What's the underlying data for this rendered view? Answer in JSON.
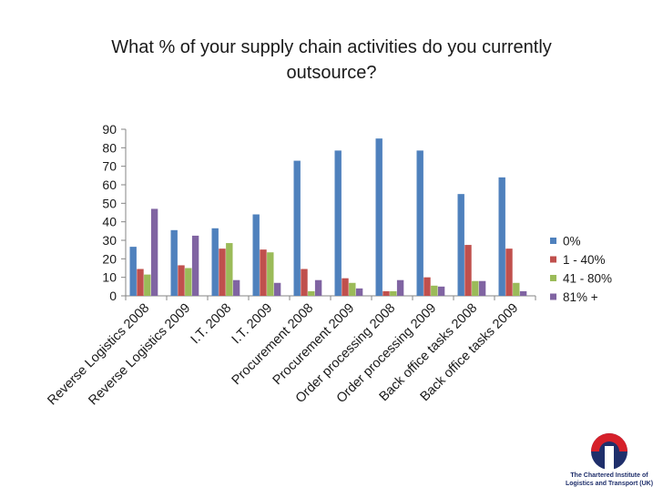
{
  "chart_data": {
    "type": "bar",
    "title_line1": "What % of your supply chain activities do you currently",
    "title_line2": "outsource?",
    "categories": [
      "Reverse Logistics 2008",
      "Reverse Logistics 2009",
      "I.T. 2008",
      "I.T. 2009",
      "Procurement 2008",
      "Procurement 2009",
      "Order processing 2008",
      "Order processing 2009",
      "Back office tasks 2008",
      "Back office tasks 2009"
    ],
    "series": [
      {
        "name": "0%",
        "color": "#4f81bd",
        "values": [
          26.5,
          35.5,
          36.5,
          44,
          73,
          78.5,
          85,
          78.5,
          55,
          64
        ]
      },
      {
        "name": "1 - 40%",
        "color": "#c0504d",
        "values": [
          14.5,
          16.5,
          25.5,
          25,
          14.5,
          9.5,
          2.5,
          10,
          27.5,
          25.5
        ]
      },
      {
        "name": "41 - 80%",
        "color": "#9bbb59",
        "values": [
          11.5,
          15,
          28.5,
          23.5,
          2.5,
          7,
          2.5,
          5.5,
          8,
          7
        ]
      },
      {
        "name": "81% +",
        "color": "#8064a2",
        "values": [
          47,
          32.5,
          8.5,
          7,
          8.5,
          4,
          8.5,
          5,
          8,
          2.5
        ]
      }
    ],
    "ylim": [
      0,
      90
    ],
    "yticks": [
      0,
      10,
      20,
      30,
      40,
      50,
      60,
      70,
      80,
      90
    ],
    "legend_position": "right",
    "grid": false
  },
  "logo": {
    "line1": "The Chartered Institute of",
    "line2": "Logistics and Transport (UK)"
  }
}
